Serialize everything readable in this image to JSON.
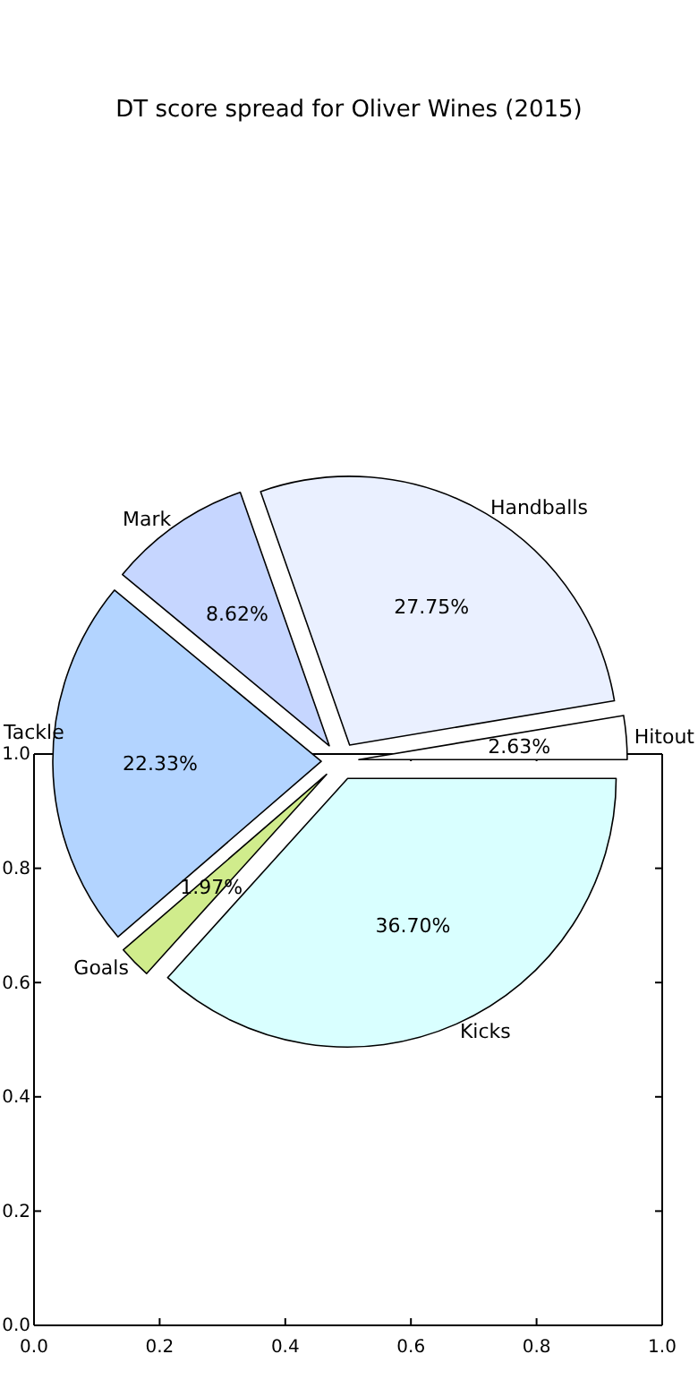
{
  "chart_data": [
    {
      "type": "pie",
      "title": "DT score spread for Oliver Wines (2015)",
      "categories": [
        "Hitout",
        "Handballs",
        "Mark",
        "Tackle",
        "Goals",
        "Kicks"
      ],
      "values": [
        2.63,
        27.75,
        8.62,
        22.33,
        1.97,
        36.7
      ],
      "value_labels": [
        "2.63%",
        "27.75%",
        "8.62%",
        "22.33%",
        "1.97%",
        "36.70%"
      ],
      "colors": [
        "#ffffff",
        "#eaf0ff",
        "#c6d6ff",
        "#b3d4ff",
        "#d0ec8c",
        "#d9ffff"
      ]
    },
    {
      "type": "scatter",
      "xlim": [
        0,
        1
      ],
      "ylim": [
        0,
        1
      ],
      "xticks": [
        {
          "value": 0,
          "label": "0.0"
        },
        {
          "value": 0.2,
          "label": "0.2"
        },
        {
          "value": 0.4,
          "label": "0.4"
        },
        {
          "value": 0.6,
          "label": "0.6"
        },
        {
          "value": 0.8,
          "label": "0.8"
        },
        {
          "value": 1,
          "label": "1.0"
        }
      ],
      "yticks": [
        {
          "value": 0,
          "label": "0.0"
        },
        {
          "value": 0.2,
          "label": "0.2"
        },
        {
          "value": 0.4,
          "label": "0.4"
        },
        {
          "value": 0.6,
          "label": "0.6"
        },
        {
          "value": 0.8,
          "label": "0.8"
        },
        {
          "value": 1,
          "label": "1.0"
        }
      ]
    }
  ]
}
